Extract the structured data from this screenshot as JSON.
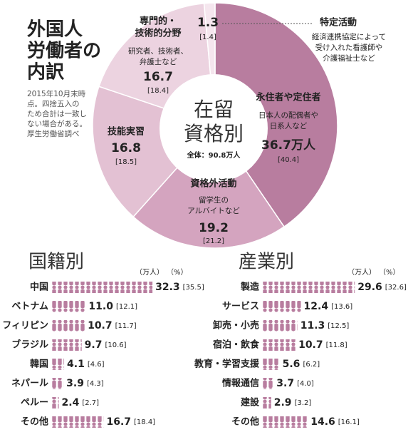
{
  "chart_data": [
    {
      "type": "pie",
      "title_lines": [
        "外国人",
        "労働者の",
        "内訳"
      ],
      "note_lines": [
        "2015年10月末時",
        "点。四捨五入の",
        "ため合計は一致し",
        "ない場合がある。",
        "厚生労働省調べ"
      ],
      "center_title_lines": [
        "在留",
        "資格別"
      ],
      "center_total": "全体：90.8万人",
      "categories": [
        [
          "永住者や定住者"
        ],
        [
          "資格外活動"
        ],
        [
          "技能実習"
        ],
        [
          "専門的・",
          "技術的分野"
        ],
        [
          "特定活動"
        ]
      ],
      "descriptions": [
        [
          "日本人の配偶者や",
          "日系人など"
        ],
        [
          "留学生の",
          "アルバイトなど"
        ],
        [],
        [
          "研究者、技術者、",
          "弁護士など"
        ],
        [
          "経済連携協定によって",
          "受け入れた看護師や",
          "介護福祉士など"
        ]
      ],
      "values": [
        36.7,
        19.2,
        16.8,
        16.7,
        1.3
      ],
      "value_labels": [
        "36.7万人",
        "19.2",
        "16.8",
        "16.7",
        "1.3"
      ],
      "percent_labels": [
        "[40.4]",
        "[21.2]",
        "[18.5]",
        "[18.4]",
        "[1.4]"
      ],
      "colors": [
        "#b87d9f",
        "#d4a4bf",
        "#e3c1d3",
        "#ecd3e0",
        "#f5e6ee"
      ]
    },
    {
      "type": "pictogram-bar",
      "title": "国籍別",
      "unit_label": "（万人）",
      "percent_unit_label": "（%）",
      "color": "#b87d9f",
      "categories": [
        "中国",
        "ベトナム",
        "フィリピン",
        "ブラジル",
        "韓国",
        "ネパール",
        "ペルー",
        "その他"
      ],
      "values": [
        32.3,
        11.0,
        10.7,
        9.7,
        4.1,
        3.9,
        2.4,
        16.7
      ],
      "value_labels": [
        "32.3",
        "11.0",
        "10.7",
        "9.7",
        "4.1",
        "3.9",
        "2.4",
        "16.7"
      ],
      "percent_labels": [
        "[35.5]",
        "[12.1]",
        "[11.7]",
        "[10.6]",
        "[4.6]",
        "[4.3]",
        "[2.7]",
        "[18.4]"
      ]
    },
    {
      "type": "pictogram-bar",
      "title": "産業別",
      "unit_label": "（万人）",
      "percent_unit_label": "（%）",
      "color": "#b87d9f",
      "categories": [
        "製造",
        "サービス",
        "卸売・小売",
        "宿泊・飲食",
        "教育・学習支援",
        "情報通信",
        "建設",
        "その他"
      ],
      "values": [
        29.6,
        12.4,
        11.3,
        10.7,
        5.6,
        3.7,
        2.9,
        14.6
      ],
      "value_labels": [
        "29.6",
        "12.4",
        "11.3",
        "10.7",
        "5.6",
        "3.7",
        "2.9",
        "14.6"
      ],
      "percent_labels": [
        "[32.6]",
        "[13.6]",
        "[12.5]",
        "[11.8]",
        "[6.2]",
        "[4.0]",
        "[3.2]",
        "[16.1]"
      ]
    }
  ]
}
